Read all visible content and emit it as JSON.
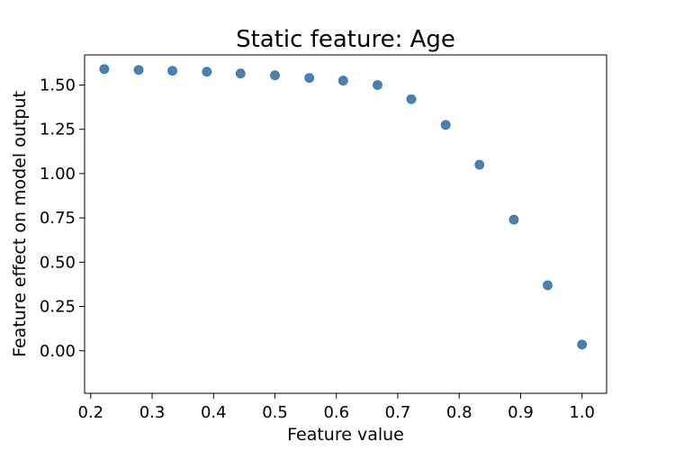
{
  "chart_data": {
    "type": "scatter",
    "title": "Static feature: Age",
    "xlabel": "Feature value",
    "ylabel": "Feature effect on model output",
    "xlim": [
      0.19,
      1.04
    ],
    "ylim": [
      -0.24,
      1.67
    ],
    "xticks": [
      {
        "value": 0.2,
        "label": "0.2"
      },
      {
        "value": 0.3,
        "label": "0.3"
      },
      {
        "value": 0.4,
        "label": "0.4"
      },
      {
        "value": 0.5,
        "label": "0.5"
      },
      {
        "value": 0.6,
        "label": "0.6"
      },
      {
        "value": 0.7,
        "label": "0.7"
      },
      {
        "value": 0.8,
        "label": "0.8"
      },
      {
        "value": 0.9,
        "label": "0.9"
      },
      {
        "value": 1.0,
        "label": "1.0"
      }
    ],
    "yticks": [
      {
        "value": 0.0,
        "label": "0.00"
      },
      {
        "value": 0.25,
        "label": "0.25"
      },
      {
        "value": 0.5,
        "label": "0.50"
      },
      {
        "value": 0.75,
        "label": "0.75"
      },
      {
        "value": 1.0,
        "label": "1.00"
      },
      {
        "value": 1.25,
        "label": "1.25"
      },
      {
        "value": 1.5,
        "label": "1.50"
      }
    ],
    "grid": false,
    "marker_color": "#4682b4",
    "points": [
      {
        "x": 0.222,
        "y": 1.59
      },
      {
        "x": 0.278,
        "y": 1.585
      },
      {
        "x": 0.333,
        "y": 1.58
      },
      {
        "x": 0.389,
        "y": 1.575
      },
      {
        "x": 0.444,
        "y": 1.565
      },
      {
        "x": 0.5,
        "y": 1.555
      },
      {
        "x": 0.556,
        "y": 1.54
      },
      {
        "x": 0.611,
        "y": 1.525
      },
      {
        "x": 0.667,
        "y": 1.5
      },
      {
        "x": 0.722,
        "y": 1.42
      },
      {
        "x": 0.778,
        "y": 1.275
      },
      {
        "x": 0.833,
        "y": 1.05
      },
      {
        "x": 0.889,
        "y": 0.74
      },
      {
        "x": 0.944,
        "y": 0.37
      },
      {
        "x": 1.0,
        "y": 0.035
      }
    ]
  }
}
